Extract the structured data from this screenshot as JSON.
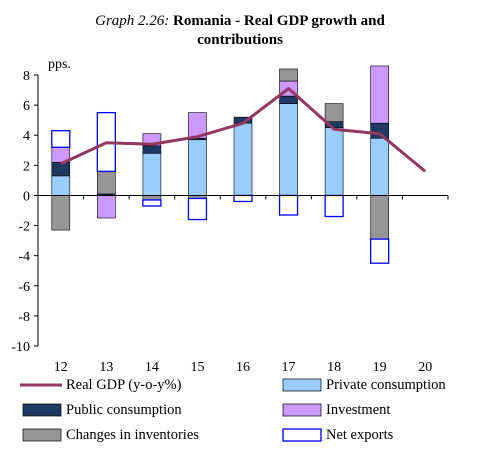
{
  "title": {
    "prefix": "Graph 2.26:",
    "line1": "Romania - Real GDP growth and",
    "line2": "contributions"
  },
  "colors": {
    "real_gdp": "#94375f",
    "private_consumption": "#99ccff",
    "public_consumption": "#1f3864",
    "investment": "#cc99ff",
    "changes_in_inventories": "#969696",
    "net_exports": "#0000ff"
  },
  "chart_data": {
    "type": "bar",
    "stacked": true,
    "categories": [
      "12",
      "13",
      "14",
      "15",
      "16",
      "17",
      "18",
      "19",
      "20"
    ],
    "ylabel": "pps.",
    "ylim": [
      -10,
      8
    ],
    "yticks": [
      -10,
      -8,
      -6,
      -4,
      -2,
      0,
      2,
      4,
      6,
      8
    ],
    "grid": false,
    "legend_position": "bottom",
    "series": [
      {
        "name": "Private consumption",
        "kind": "bar",
        "color": "#99ccff",
        "values": [
          1.3,
          0.0,
          2.8,
          3.7,
          4.8,
          6.1,
          4.5,
          3.8,
          null
        ]
      },
      {
        "name": "Public consumption",
        "kind": "bar",
        "color": "#1f3864",
        "values": [
          0.9,
          0.1,
          0.5,
          0.1,
          0.4,
          0.5,
          0.4,
          1.0,
          null
        ]
      },
      {
        "name": "Investment",
        "kind": "bar",
        "color": "#cc99ff",
        "values": [
          1.0,
          -1.5,
          0.8,
          1.7,
          0.0,
          1.0,
          0.0,
          3.8,
          null
        ]
      },
      {
        "name": "Changes in inventories",
        "kind": "bar",
        "color": "#969696",
        "values": [
          -2.3,
          1.5,
          -0.3,
          -0.2,
          0.0,
          0.8,
          1.2,
          -2.9,
          null
        ]
      },
      {
        "name": "Net exports",
        "kind": "bar",
        "color": "#0000ff",
        "hollow": true,
        "values": [
          1.1,
          3.9,
          -0.4,
          -1.4,
          -0.4,
          -1.3,
          -1.4,
          -1.6,
          null
        ]
      },
      {
        "name": "Real GDP (y-o-y%)",
        "kind": "line",
        "color": "#94375f",
        "values": [
          2.1,
          3.5,
          3.4,
          3.9,
          4.8,
          7.1,
          4.4,
          4.1,
          1.6
        ]
      }
    ]
  },
  "legend": [
    {
      "label": "Real GDP (y-o-y%)",
      "icon": "line",
      "color": "#94375f"
    },
    {
      "label": "Private consumption",
      "icon": "box",
      "color": "#99ccff"
    },
    {
      "label": "Public consumption",
      "icon": "box",
      "color": "#1f3864"
    },
    {
      "label": "Investment",
      "icon": "box",
      "color": "#cc99ff"
    },
    {
      "label": "Changes in inventories",
      "icon": "box",
      "color": "#969696"
    },
    {
      "label": "Net exports",
      "icon": "hollow-box",
      "color": "#0000ff"
    }
  ]
}
